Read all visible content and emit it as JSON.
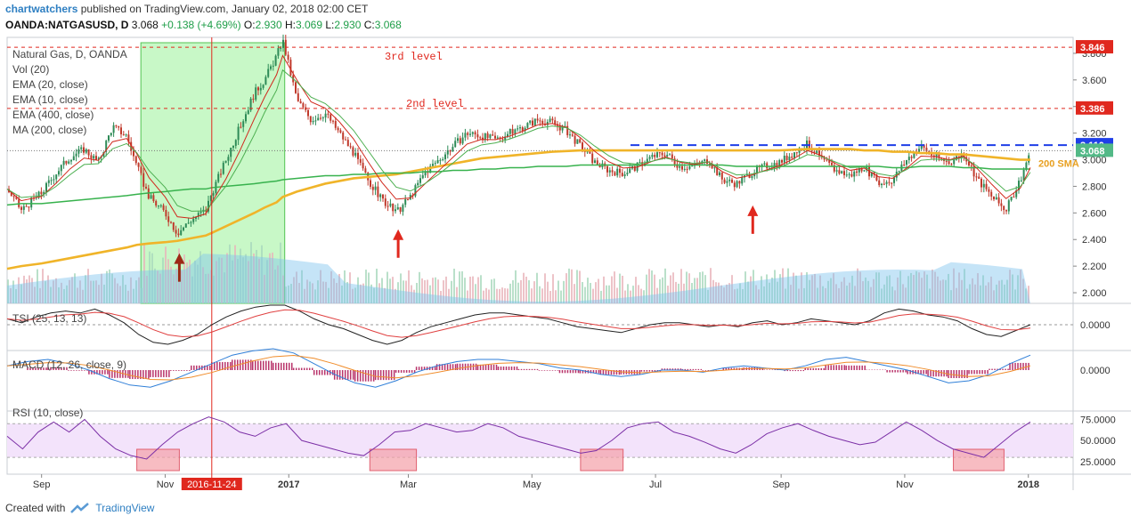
{
  "header": {
    "author": "chartwatchers",
    "published": "published on TradingView.com, January 02, 2018 02:00 CET",
    "symbol": "OANDA:NATGASUSD, D",
    "last": "3.068",
    "change": "+0.138 (+4.69%)",
    "ohlc": [
      {
        "label": "O:",
        "value": "2.930"
      },
      {
        "label": "H:",
        "value": "3.069"
      },
      {
        "label": "L:",
        "value": "2.930"
      },
      {
        "label": "C:",
        "value": "3.068"
      }
    ]
  },
  "legend": [
    "Natural Gas, D, OANDA",
    "Vol (20)",
    "EMA (20, close)",
    "EMA (10, close)",
    "EMA (400, close)",
    "MA (200, close)"
  ],
  "annotations": {
    "level3": "3rd level",
    "level2": "2nd level",
    "sma": "200 SMA",
    "cursor_date": "2016-11-24"
  },
  "footer": {
    "created_with": "Created with",
    "brand": "TradingView"
  },
  "colors": {
    "up": "#53b987",
    "down": "#eb4d5c",
    "ema400": "#f0b429",
    "ma200": "#37b24d",
    "accent_red": "#e0281e",
    "blue_dash": "#1f3fe8",
    "tsi_signal": "#e04040",
    "macd_line": "#2f7fd8",
    "macd_signal": "#f08c2a",
    "rsi": "#7b2fa6",
    "rsi_band": "#f3e3fb"
  },
  "chart_data": [
    {
      "type": "line",
      "title": "Natural Gas, D, OANDA",
      "x_ticks": [
        "Sep",
        "Nov",
        "2017",
        "Mar",
        "May",
        "Jul",
        "Sep",
        "Nov",
        "2018"
      ],
      "y_ticks": [
        "2.000",
        "2.200",
        "2.400",
        "2.600",
        "2.800",
        "3.000",
        "3.200",
        "3.400",
        "3.600",
        "3.800"
      ],
      "ylim": [
        1.92,
        3.92
      ],
      "price_labels": [
        {
          "value": "3.846",
          "color": "#e0281e"
        },
        {
          "value": "3.386",
          "color": "#e0281e"
        },
        {
          "value": "3.110",
          "color": "#1f3fe8"
        },
        {
          "value": "3.068",
          "color": "#53b987"
        }
      ],
      "x": [
        "2016-08-15",
        "2016-08-22",
        "2016-09-01",
        "2016-09-08",
        "2016-09-15",
        "2016-09-22",
        "2016-09-29",
        "2016-10-06",
        "2016-10-13",
        "2016-10-18",
        "2016-10-24",
        "2016-11-01",
        "2016-11-07",
        "2016-11-14",
        "2016-11-21",
        "2016-11-24",
        "2016-12-01",
        "2016-12-08",
        "2016-12-15",
        "2016-12-20",
        "2016-12-26",
        "2016-12-29",
        "2017-01-05",
        "2017-01-12",
        "2017-01-19",
        "2017-01-26",
        "2017-02-02",
        "2017-02-09",
        "2017-02-16",
        "2017-02-23",
        "2017-03-02",
        "2017-03-09",
        "2017-03-16",
        "2017-03-23",
        "2017-03-30",
        "2017-04-06",
        "2017-04-13",
        "2017-04-20",
        "2017-04-27",
        "2017-05-04",
        "2017-05-11",
        "2017-05-18",
        "2017-05-25",
        "2017-06-01",
        "2017-06-08",
        "2017-06-15",
        "2017-06-22",
        "2017-06-29",
        "2017-07-06",
        "2017-07-13",
        "2017-07-20",
        "2017-07-27",
        "2017-08-03",
        "2017-08-10",
        "2017-08-17",
        "2017-08-24",
        "2017-08-31",
        "2017-09-07",
        "2017-09-14",
        "2017-09-21",
        "2017-09-28",
        "2017-10-05",
        "2017-10-12",
        "2017-10-19",
        "2017-10-26",
        "2017-11-02",
        "2017-11-09",
        "2017-11-16",
        "2017-11-23",
        "2017-11-30",
        "2017-12-07",
        "2017-12-14",
        "2017-12-21",
        "2017-12-28",
        "2018-01-02"
      ],
      "series": [
        {
          "values": [
            2.78,
            2.62,
            2.75,
            2.9,
            3.02,
            3.08,
            2.98,
            3.25,
            3.18,
            2.95,
            2.72,
            2.6,
            2.45,
            2.55,
            2.62,
            2.75,
            3.0,
            3.25,
            3.5,
            3.6,
            3.78,
            3.9,
            3.45,
            3.3,
            3.35,
            3.2,
            3.05,
            2.85,
            2.7,
            2.6,
            2.72,
            2.9,
            3.0,
            3.1,
            3.2,
            3.18,
            3.15,
            3.2,
            3.25,
            3.3,
            3.28,
            3.22,
            3.1,
            2.98,
            2.92,
            2.9,
            2.95,
            3.02,
            3.05,
            2.95,
            2.95,
            3.0,
            2.85,
            2.82,
            2.9,
            2.95,
            2.98,
            3.05,
            3.12,
            3.0,
            2.92,
            2.88,
            2.95,
            2.82,
            2.85,
            3.0,
            3.1,
            3.02,
            2.98,
            3.05,
            2.85,
            2.72,
            2.62,
            2.85,
            3.068
          ]
        },
        {
          "name": "EMA (400, close)",
          "values": [
            2.18,
            2.2,
            2.22,
            2.24,
            2.26,
            2.28,
            2.3,
            2.32,
            2.34,
            2.36,
            2.37,
            2.38,
            2.39,
            2.41,
            2.43,
            2.45,
            2.5,
            2.55,
            2.6,
            2.64,
            2.68,
            2.72,
            2.76,
            2.79,
            2.82,
            2.84,
            2.86,
            2.87,
            2.88,
            2.89,
            2.91,
            2.93,
            2.95,
            2.97,
            2.99,
            3.01,
            3.02,
            3.03,
            3.04,
            3.05,
            3.06,
            3.065,
            3.07,
            3.07,
            3.07,
            3.07,
            3.07,
            3.07,
            3.07,
            3.07,
            3.07,
            3.07,
            3.07,
            3.07,
            3.07,
            3.07,
            3.07,
            3.075,
            3.08,
            3.08,
            3.08,
            3.08,
            3.07,
            3.07,
            3.06,
            3.06,
            3.05,
            3.05,
            3.04,
            3.04,
            3.03,
            3.02,
            3.01,
            3.0,
            3.0
          ]
        },
        {
          "name": "MA (200, close)",
          "values": [
            2.66,
            2.67,
            2.67,
            2.68,
            2.69,
            2.7,
            2.71,
            2.72,
            2.73,
            2.74,
            2.75,
            2.76,
            2.77,
            2.78,
            2.78,
            2.79,
            2.8,
            2.81,
            2.82,
            2.83,
            2.84,
            2.85,
            2.86,
            2.87,
            2.88,
            2.88,
            2.89,
            2.89,
            2.9,
            2.9,
            2.9,
            2.91,
            2.91,
            2.92,
            2.92,
            2.93,
            2.93,
            2.94,
            2.94,
            2.95,
            2.95,
            2.95,
            2.96,
            2.96,
            2.96,
            2.96,
            2.96,
            2.96,
            2.96,
            2.96,
            2.96,
            2.96,
            2.96,
            2.95,
            2.95,
            2.95,
            2.95,
            2.95,
            2.95,
            2.95,
            2.95,
            2.95,
            2.95,
            2.95,
            2.94,
            2.94,
            2.95,
            2.95,
            2.95,
            2.94,
            2.94,
            2.93,
            2.93,
            2.93,
            2.93
          ]
        }
      ]
    },
    {
      "type": "line",
      "title": "TSI (25, 13, 13)",
      "y_ticks": [
        "0.0000"
      ],
      "series": [
        {
          "values": [
            0.3,
            0.1,
            0.4,
            0.6,
            0.7,
            0.6,
            0.8,
            0.5,
            0.1,
            -0.5,
            -0.9,
            -1.0,
            -0.8,
            -0.5,
            0.0,
            0.4,
            0.7,
            0.9,
            1.0,
            1.0,
            0.7,
            0.3,
            0.0,
            -0.2,
            -0.5,
            -0.8,
            -1.0,
            -0.8,
            -0.4,
            -0.1,
            0.1,
            0.3,
            0.5,
            0.6,
            0.6,
            0.5,
            0.4,
            0.3,
            0.1,
            -0.1,
            -0.2,
            -0.3,
            -0.4,
            -0.2,
            0.0,
            0.1,
            0.1,
            0.0,
            -0.1,
            0.0,
            -0.1,
            0.1,
            0.2,
            0.0,
            0.1,
            0.3,
            0.2,
            0.1,
            0.0,
            0.2,
            0.6,
            0.8,
            0.7,
            0.5,
            0.4,
            0.2,
            -0.2,
            -0.5,
            -0.6,
            -0.3,
            0.0
          ]
        }
      ]
    },
    {
      "type": "line",
      "title": "MACD (12, 26, close, 9)",
      "y_ticks": [
        "0.0000"
      ],
      "series": [
        {
          "values": [
            0.2,
            0.4,
            0.5,
            0.3,
            0.0,
            -0.4,
            -0.7,
            -0.8,
            -0.5,
            -0.1,
            0.3,
            0.7,
            0.9,
            1.0,
            0.8,
            0.3,
            -0.2,
            -0.6,
            -0.8,
            -0.5,
            -0.1,
            0.2,
            0.4,
            0.5,
            0.5,
            0.4,
            0.3,
            0.1,
            0.0,
            -0.2,
            -0.3,
            -0.2,
            0.0,
            0.0,
            -0.1,
            0.1,
            0.2,
            0.1,
            0.0,
            0.2,
            0.5,
            0.6,
            0.4,
            0.2,
            0.0,
            -0.3,
            -0.6,
            -0.5,
            -0.2,
            0.3,
            0.7
          ]
        }
      ]
    },
    {
      "type": "line",
      "title": "RSI (10, close)",
      "y_ticks": [
        "25.0000",
        "50.0000",
        "75.0000"
      ],
      "ylim": [
        10,
        85
      ],
      "series": [
        {
          "values": [
            55,
            40,
            60,
            72,
            60,
            75,
            55,
            40,
            32,
            28,
            45,
            60,
            70,
            78,
            72,
            60,
            55,
            65,
            70,
            50,
            45,
            40,
            35,
            32,
            45,
            60,
            62,
            70,
            65,
            60,
            62,
            70,
            65,
            55,
            50,
            45,
            40,
            35,
            38,
            50,
            65,
            70,
            72,
            60,
            55,
            48,
            40,
            35,
            45,
            58,
            65,
            70,
            62,
            55,
            50,
            45,
            48,
            60,
            72,
            62,
            50,
            40,
            35,
            30,
            45,
            60,
            72
          ]
        }
      ]
    }
  ]
}
